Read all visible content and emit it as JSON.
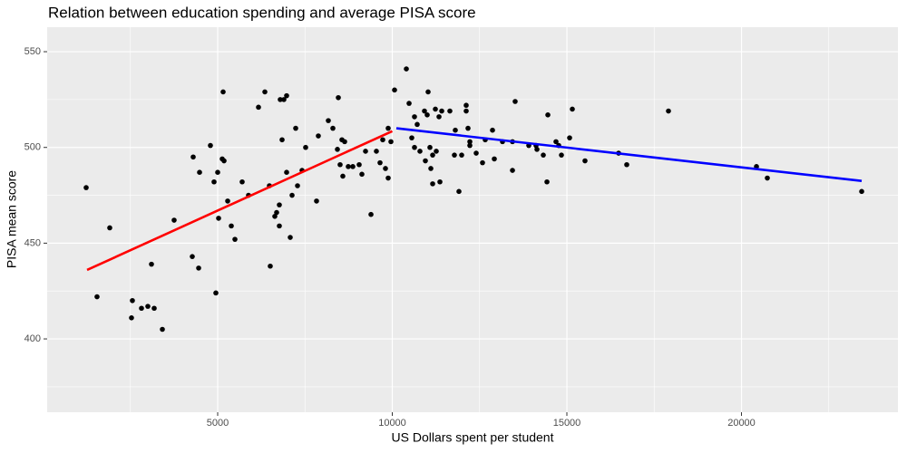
{
  "chart_data": {
    "type": "scatter",
    "title": "Relation between education spending and average PISA score",
    "x_label": "US Dollars spent per student",
    "y_label": "PISA mean score",
    "xlim": [
      117,
      24480
    ],
    "ylim": [
      361.7,
      562.8
    ],
    "xticks": [
      5000,
      10000,
      15000,
      20000
    ],
    "yticks": [
      400,
      450,
      500,
      550
    ],
    "x_minor_grid": [
      2500,
      7500,
      12500,
      17500,
      22500
    ],
    "y_minor_grid": [
      375,
      425,
      475,
      525
    ],
    "grid": true,
    "series": [
      {
        "type": "scatter",
        "color": "#000000",
        "x": [
          1234,
          1545,
          1909,
          2558,
          2532,
          2818,
          3000,
          3182,
          3104,
          3416,
          3753,
          4299,
          4273,
          4455,
          4481,
          4792,
          4896,
          4948,
          5000,
          5026,
          5130,
          5182,
          5156,
          5286,
          5390,
          5494,
          5701,
          5883,
          6169,
          6351,
          6481,
          6506,
          6636,
          6688,
          6766,
          6766,
          6792,
          6844,
          6896,
          6974,
          6974,
          7078,
          7130,
          7234,
          7286,
          7416,
          7519,
          7831,
          7883,
          8169,
          8299,
          8429,
          8455,
          8506,
          8558,
          8584,
          8636,
          8740,
          8870,
          9052,
          9130,
          9234,
          9390,
          9545,
          9649,
          9727,
          9805,
          9883,
          9883,
          9961,
          10065,
          10403,
          10481,
          10558,
          10636,
          10636,
          10714,
          10792,
          10922,
          10948,
          11000,
          11026,
          11078,
          11104,
          11156,
          11156,
          11260,
          11234,
          11338,
          11364,
          11416,
          11649,
          11805,
          11779,
          11909,
          11987,
          12117,
          12117,
          12169,
          12221,
          12221,
          12403,
          12584,
          12662,
          12870,
          12922,
          13156,
          13442,
          13442,
          13519,
          13909,
          14117,
          14143,
          14325,
          14429,
          14455,
          14688,
          14766,
          14844,
          15078,
          15156,
          15519,
          16481,
          16714,
          17909,
          20429,
          20740,
          23442
        ],
        "values": [
          479,
          422,
          458,
          420,
          411,
          416,
          417,
          416,
          439,
          405,
          462,
          495,
          443,
          437,
          487,
          501,
          482,
          424,
          487,
          463,
          494,
          493,
          529,
          472,
          459,
          452,
          482,
          475,
          521,
          529,
          480,
          438,
          464,
          466,
          470,
          459,
          525,
          504,
          525,
          527,
          487,
          453,
          475,
          510,
          480,
          488,
          500,
          472,
          506,
          514,
          510,
          499,
          526,
          491,
          504,
          485,
          503,
          490,
          490,
          491,
          486,
          498,
          465,
          498,
          492,
          504,
          489,
          484,
          510,
          503,
          530,
          541,
          523,
          505,
          516,
          500,
          512,
          498,
          519,
          493,
          517,
          529,
          500,
          489,
          496,
          481,
          498,
          520,
          516,
          482,
          519,
          519,
          509,
          496,
          477,
          496,
          522,
          519,
          510,
          503,
          501,
          497,
          492,
          504,
          509,
          494,
          503,
          503,
          488,
          524,
          501,
          501,
          499,
          496,
          482,
          517,
          503,
          501,
          496,
          505,
          520,
          493,
          497,
          491,
          519,
          490,
          484,
          477
        ]
      },
      {
        "type": "line",
        "color": "#ff0000",
        "x": [
          1260,
          10000
        ],
        "values": [
          436,
          508.5
        ]
      },
      {
        "type": "line",
        "color": "#0000ff",
        "x": [
          10117,
          23442
        ],
        "values": [
          510,
          482.5
        ]
      }
    ]
  }
}
